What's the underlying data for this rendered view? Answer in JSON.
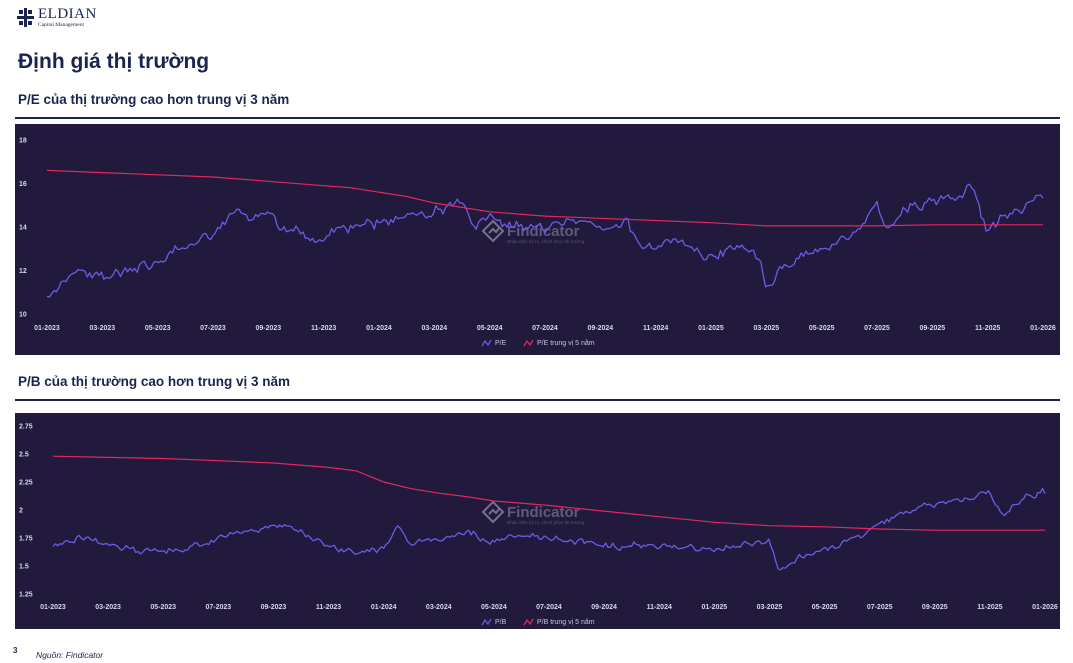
{
  "brand": {
    "name": "ELDIAN",
    "sub": "Capital Management"
  },
  "page_title": "Định giá thị trường",
  "section1": {
    "title": "P/E của thị trường cao hơn trung vị 3 năm"
  },
  "section2": {
    "title": "P/B của thị trường cao hơn trung vị 3 năm"
  },
  "watermark": {
    "name": "Findicator",
    "tagline": "Nhận diện rủi ro, chinh phục thị trường"
  },
  "footer": {
    "page_number": "3",
    "source": "Nguồn: Findicator"
  },
  "colors": {
    "panel_bg": "#211a3c",
    "series_main": "#6e5ae6",
    "series_median": "#e0285c",
    "heading": "#1b2350"
  },
  "chart_data": [
    {
      "type": "line",
      "xlabel": "",
      "ylabel": "",
      "x_ticks": [
        "01-2023",
        "03-2023",
        "05-2023",
        "07-2023",
        "09-2023",
        "11-2023",
        "01-2024",
        "03-2024",
        "05-2024",
        "07-2024",
        "09-2024",
        "11-2024",
        "01-2025",
        "03-2025",
        "05-2025",
        "07-2025",
        "09-2025",
        "11-2025",
        "01-2026"
      ],
      "x_range": [
        0,
        36
      ],
      "y_ticks": [
        10,
        12,
        14,
        16,
        18
      ],
      "ylim": [
        10,
        18
      ],
      "grid": false,
      "legend_position": "bottom-center",
      "series": [
        {
          "name": "P/E",
          "color": "#6e5ae6",
          "noise": 0.22,
          "points": [
            [
              0,
              10.9
            ],
            [
              0.5,
              11.4
            ],
            [
              1,
              12.1
            ],
            [
              2,
              11.7
            ],
            [
              3,
              12.0
            ],
            [
              4,
              12.4
            ],
            [
              5,
              13.0
            ],
            [
              6,
              13.6
            ],
            [
              6.8,
              14.7
            ],
            [
              7.5,
              14.4
            ],
            [
              8,
              14.9
            ],
            [
              8.6,
              13.8
            ],
            [
              9,
              14.2
            ],
            [
              9.6,
              13.3
            ],
            [
              10,
              13.6
            ],
            [
              11,
              14.0
            ],
            [
              12,
              14.2
            ],
            [
              13,
              14.4
            ],
            [
              14,
              14.7
            ],
            [
              15,
              15.0
            ],
            [
              15.5,
              13.9
            ],
            [
              16,
              14.3
            ],
            [
              17,
              14.0
            ],
            [
              18,
              13.8
            ],
            [
              19,
              14.3
            ],
            [
              20,
              14.1
            ],
            [
              21,
              14.3
            ],
            [
              21.5,
              12.8
            ],
            [
              22,
              13.1
            ],
            [
              23,
              13.3
            ],
            [
              23.5,
              12.9
            ],
            [
              24,
              12.6
            ],
            [
              25,
              13.0
            ],
            [
              25.5,
              13.2
            ],
            [
              25.8,
              12.3
            ],
            [
              26,
              11.2
            ],
            [
              26.5,
              12.0
            ],
            [
              27,
              12.4
            ],
            [
              28,
              13.0
            ],
            [
              29,
              13.6
            ],
            [
              30,
              15.0
            ],
            [
              30.3,
              13.8
            ],
            [
              31,
              14.8
            ],
            [
              32,
              15.2
            ],
            [
              33,
              15.4
            ],
            [
              33.4,
              15.9
            ],
            [
              33.7,
              14.7
            ],
            [
              34,
              13.9
            ],
            [
              35,
              14.8
            ],
            [
              35.5,
              15.2
            ],
            [
              36,
              15.6
            ]
          ]
        },
        {
          "name": "P/E trung vị 5 năm",
          "color": "#e0285c",
          "noise": 0,
          "points": [
            [
              0,
              16.6
            ],
            [
              2,
              16.5
            ],
            [
              4,
              16.4
            ],
            [
              6,
              16.3
            ],
            [
              8,
              16.1
            ],
            [
              10,
              15.9
            ],
            [
              11,
              15.8
            ],
            [
              12,
              15.6
            ],
            [
              13,
              15.4
            ],
            [
              14,
              15.1
            ],
            [
              15,
              14.9
            ],
            [
              16,
              14.7
            ],
            [
              18,
              14.5
            ],
            [
              20,
              14.4
            ],
            [
              22,
              14.3
            ],
            [
              24,
              14.2
            ],
            [
              26,
              14.05
            ],
            [
              28,
              14.05
            ],
            [
              30,
              14.05
            ],
            [
              32,
              14.1
            ],
            [
              34,
              14.1
            ],
            [
              36,
              14.1
            ]
          ]
        }
      ]
    },
    {
      "type": "line",
      "xlabel": "",
      "ylabel": "",
      "x_ticks": [
        "01-2023",
        "03-2023",
        "05-2023",
        "07-2023",
        "09-2023",
        "11-2023",
        "01-2024",
        "03-2024",
        "05-2024",
        "07-2024",
        "09-2024",
        "11-2024",
        "01-2025",
        "03-2025",
        "05-2025",
        "07-2025",
        "09-2025",
        "11-2025",
        "01-2026"
      ],
      "x_range": [
        0,
        36
      ],
      "y_ticks": [
        "1.25",
        "1.5",
        "1.75",
        "2",
        "2.25",
        "2.5",
        "2.75"
      ],
      "ylim": [
        1.25,
        2.75
      ],
      "grid": false,
      "legend_position": "bottom-center",
      "series": [
        {
          "name": "P/B",
          "color": "#6e5ae6",
          "noise": 0.028,
          "points": [
            [
              0,
              1.69
            ],
            [
              1,
              1.76
            ],
            [
              2,
              1.68
            ],
            [
              3,
              1.64
            ],
            [
              4,
              1.63
            ],
            [
              5,
              1.67
            ],
            [
              6,
              1.75
            ],
            [
              7,
              1.8
            ],
            [
              8,
              1.86
            ],
            [
              9,
              1.81
            ],
            [
              10,
              1.68
            ],
            [
              11,
              1.62
            ],
            [
              12,
              1.66
            ],
            [
              12.5,
              1.88
            ],
            [
              13,
              1.72
            ],
            [
              14,
              1.74
            ],
            [
              15,
              1.82
            ],
            [
              16,
              1.72
            ],
            [
              17,
              1.78
            ],
            [
              18,
              1.75
            ],
            [
              19,
              1.72
            ],
            [
              20,
              1.7
            ],
            [
              21,
              1.68
            ],
            [
              22,
              1.68
            ],
            [
              23,
              1.66
            ],
            [
              24,
              1.66
            ],
            [
              25,
              1.7
            ],
            [
              26,
              1.72
            ],
            [
              26.3,
              1.46
            ],
            [
              27,
              1.57
            ],
            [
              28,
              1.63
            ],
            [
              29,
              1.74
            ],
            [
              30,
              1.86
            ],
            [
              31,
              1.98
            ],
            [
              32,
              2.05
            ],
            [
              33,
              2.08
            ],
            [
              34,
              2.15
            ],
            [
              34.5,
              1.96
            ],
            [
              35,
              2.08
            ],
            [
              36,
              2.16
            ]
          ]
        },
        {
          "name": "P/B trung vị 5 năm",
          "color": "#e0285c",
          "noise": 0,
          "points": [
            [
              0,
              2.48
            ],
            [
              2,
              2.47
            ],
            [
              4,
              2.46
            ],
            [
              6,
              2.44
            ],
            [
              8,
              2.42
            ],
            [
              10,
              2.38
            ],
            [
              11,
              2.35
            ],
            [
              12,
              2.25
            ],
            [
              13,
              2.19
            ],
            [
              14,
              2.15
            ],
            [
              15,
              2.12
            ],
            [
              16,
              2.08
            ],
            [
              18,
              2.04
            ],
            [
              20,
              1.99
            ],
            [
              22,
              1.94
            ],
            [
              24,
              1.89
            ],
            [
              26,
              1.86
            ],
            [
              28,
              1.85
            ],
            [
              30,
              1.83
            ],
            [
              32,
              1.82
            ],
            [
              34,
              1.82
            ],
            [
              36,
              1.82
            ]
          ]
        }
      ]
    }
  ]
}
